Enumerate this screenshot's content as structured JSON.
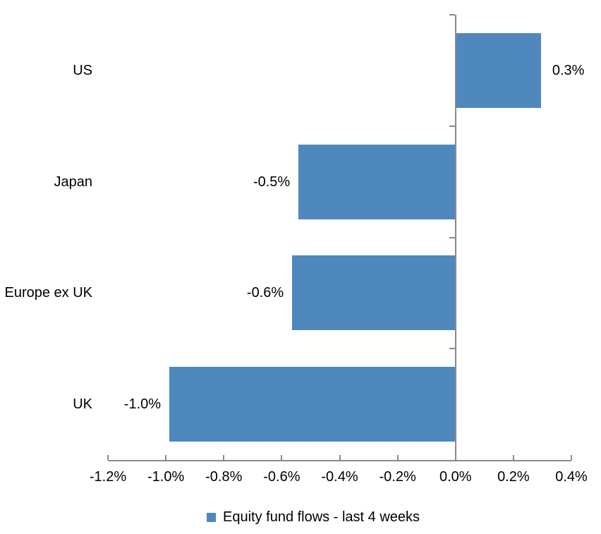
{
  "chart_data": {
    "type": "bar",
    "orientation": "horizontal",
    "title": "",
    "categories": [
      "US",
      "Japan",
      "Europe ex UK",
      "UK"
    ],
    "values": [
      0.3,
      -0.5,
      -0.6,
      -1.0
    ],
    "plotted_values": [
      0.295,
      -0.542,
      -0.564,
      -0.988
    ],
    "data_labels": [
      "0.3%",
      "-0.5%",
      "-0.6%",
      "-1.0%"
    ],
    "x_tick_labels": [
      "-1.2%",
      "-1.0%",
      "-0.8%",
      "-0.6%",
      "-0.4%",
      "-0.2%",
      "0.0%",
      "0.2%",
      "0.4%"
    ],
    "x_tick_values": [
      -1.2,
      -1.0,
      -0.8,
      -0.6,
      -0.4,
      -0.2,
      0.0,
      0.2,
      0.4
    ],
    "xlim": [
      -1.2,
      0.4
    ],
    "unit": "%",
    "grid": false,
    "legend": {
      "position": "bottom",
      "entries": [
        {
          "label": "Equity fund flows - last 4 weeks",
          "color": "#4F88BD"
        }
      ]
    }
  },
  "colors": {
    "bar": "#4F88BD",
    "axis_line": "#8A8A8A",
    "text": "#000000",
    "background": "#FFFFFF"
  }
}
